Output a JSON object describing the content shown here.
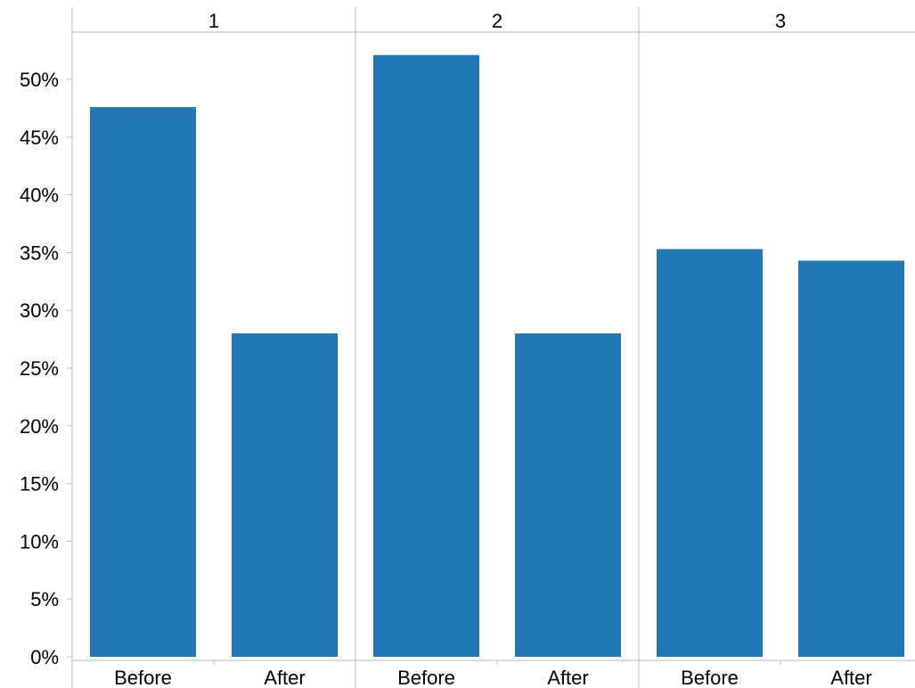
{
  "chart_data": {
    "type": "bar",
    "panels": [
      "1",
      "2",
      "3"
    ],
    "categories": [
      "Before",
      "After"
    ],
    "series": [
      {
        "panel": "1",
        "values": [
          47.6,
          28.0
        ]
      },
      {
        "panel": "2",
        "values": [
          52.1,
          28.0
        ]
      },
      {
        "panel": "3",
        "values": [
          35.3,
          34.3
        ]
      }
    ],
    "value_format": "percent",
    "ylim": [
      0,
      55
    ],
    "yticks": [
      0,
      5,
      10,
      15,
      20,
      25,
      30,
      35,
      40,
      45,
      50
    ],
    "ytick_labels": [
      "0%",
      "5%",
      "10%",
      "15%",
      "20%",
      "25%",
      "30%",
      "35%",
      "40%",
      "45%",
      "50%"
    ],
    "bar_color": "#2177b4",
    "axis_color": "#bbbbbb",
    "grid": false,
    "legend": "none"
  }
}
